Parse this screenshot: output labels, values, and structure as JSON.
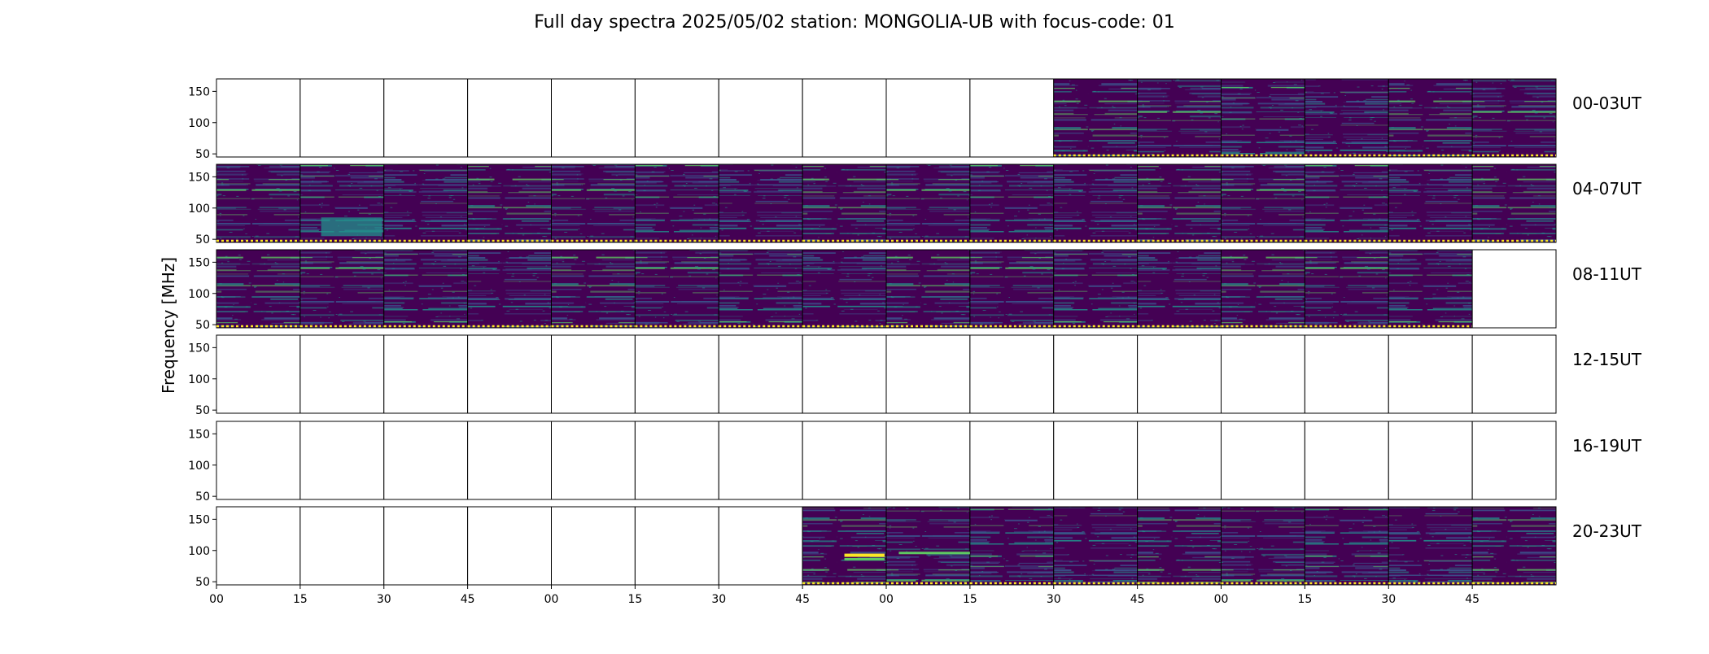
{
  "chart_data": {
    "type": "heatmap",
    "title": "Full day spectra 2025/05/02 station: MONGOLIA-UB with focus-code: 01",
    "ylabel": "Frequency [MHz]",
    "xlabel": "",
    "ylim": [
      45,
      170
    ],
    "yticks": [
      50,
      100,
      150
    ],
    "xticks": [
      "00",
      "15",
      "30",
      "45",
      "00",
      "15",
      "30",
      "45",
      "00",
      "15",
      "30",
      "45",
      "00",
      "15",
      "30",
      "45"
    ],
    "grid": false,
    "colormap": "viridis",
    "colors": {
      "low": "#440154",
      "mid": "#3b528b",
      "bright": "#21918c",
      "high": "#5ec962",
      "peak": "#fde725",
      "frame": "#000000"
    },
    "rows": [
      {
        "label": "00-03UT",
        "present": [
          0,
          0,
          0,
          0,
          0,
          0,
          0,
          0,
          0,
          0,
          1,
          1,
          1,
          1,
          1,
          1
        ]
      },
      {
        "label": "04-07UT",
        "present": [
          1,
          1,
          1,
          1,
          1,
          1,
          1,
          1,
          1,
          1,
          1,
          1,
          1,
          1,
          1,
          1
        ]
      },
      {
        "label": "08-11UT",
        "present": [
          1,
          1,
          1,
          1,
          1,
          1,
          1,
          1,
          1,
          1,
          1,
          1,
          1,
          1,
          1,
          0
        ]
      },
      {
        "label": "12-15UT",
        "present": [
          0,
          0,
          0,
          0,
          0,
          0,
          0,
          0,
          0,
          0,
          0,
          0,
          0,
          0,
          0,
          0
        ]
      },
      {
        "label": "16-19UT",
        "present": [
          0,
          0,
          0,
          0,
          0,
          0,
          0,
          0,
          0,
          0,
          0,
          0,
          0,
          0,
          0,
          0
        ]
      },
      {
        "label": "20-23UT",
        "present": [
          0,
          0,
          0,
          0,
          0,
          0,
          0,
          1,
          1,
          1,
          1,
          1,
          1,
          1,
          1,
          1
        ]
      }
    ]
  }
}
